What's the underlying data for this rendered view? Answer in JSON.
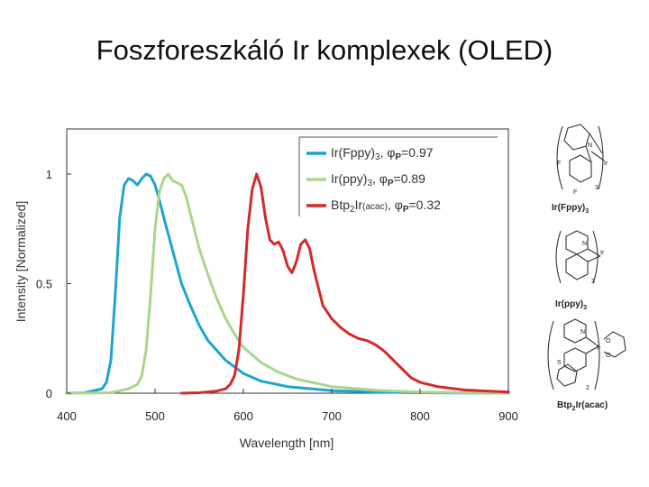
{
  "slide": {
    "title": "Foszforeszkáló Ir komplexek (OLED)"
  },
  "chart_data": {
    "type": "line",
    "title": "",
    "xlabel": "Wavelength [nm]",
    "ylabel": "Intensity [Normalized]",
    "xlim": [
      400,
      900
    ],
    "ylim": [
      0,
      1.2
    ],
    "xticks": [
      400,
      500,
      600,
      700,
      800,
      900
    ],
    "xtick_labels": [
      "400",
      "500",
      "600",
      "700",
      "800",
      "900"
    ],
    "yticks": [
      0,
      0.5,
      1
    ],
    "ytick_labels": [
      "0",
      "0.5",
      "1"
    ],
    "grid": false,
    "legend_position": "top-right",
    "series": [
      {
        "name": "Ir(Fppy)3",
        "legend_main": "Ir(Fppy)",
        "legend_sub": "3",
        "legend_phi_label": "φ",
        "legend_phi_sub": "P",
        "legend_phi_value": "=0.97",
        "color": "#1ea5cf",
        "x": [
          400,
          420,
          440,
          445,
          450,
          455,
          460,
          465,
          470,
          475,
          480,
          485,
          490,
          495,
          500,
          505,
          510,
          520,
          530,
          540,
          550,
          560,
          580,
          600,
          620,
          650,
          700,
          750,
          800,
          900
        ],
        "y": [
          0,
          0.002,
          0.02,
          0.05,
          0.15,
          0.45,
          0.8,
          0.95,
          0.98,
          0.97,
          0.95,
          0.98,
          1.0,
          0.99,
          0.95,
          0.88,
          0.8,
          0.65,
          0.5,
          0.4,
          0.31,
          0.24,
          0.15,
          0.09,
          0.055,
          0.03,
          0.012,
          0.005,
          0.002,
          0
        ]
      },
      {
        "name": "Ir(ppy)3",
        "legend_main": "Ir(ppy)",
        "legend_sub": "3",
        "legend_phi_label": "φ",
        "legend_phi_sub": "P",
        "legend_phi_value": "=0.89",
        "color": "#a8d68a",
        "x": [
          400,
          450,
          470,
          480,
          485,
          490,
          495,
          500,
          505,
          510,
          515,
          520,
          525,
          530,
          535,
          540,
          545,
          550,
          560,
          570,
          580,
          590,
          600,
          620,
          640,
          660,
          700,
          750,
          800,
          850,
          900
        ],
        "y": [
          0,
          0.002,
          0.02,
          0.04,
          0.08,
          0.2,
          0.45,
          0.75,
          0.92,
          0.98,
          1.0,
          0.97,
          0.96,
          0.95,
          0.9,
          0.82,
          0.74,
          0.66,
          0.54,
          0.43,
          0.34,
          0.27,
          0.21,
          0.14,
          0.095,
          0.065,
          0.03,
          0.013,
          0.005,
          0.002,
          0
        ]
      },
      {
        "name": "Btp2Ir(acac)",
        "legend_main": "Btp",
        "legend_sub": "2",
        "legend_main2": "Ir",
        "legend_small": "(acac)",
        "legend_phi_label": "φ",
        "legend_phi_sub": "P",
        "legend_phi_value": "=0.32",
        "color": "#d42a2a",
        "x": [
          530,
          550,
          570,
          580,
          585,
          590,
          595,
          600,
          605,
          610,
          615,
          620,
          625,
          630,
          635,
          640,
          645,
          650,
          655,
          660,
          665,
          670,
          675,
          680,
          690,
          700,
          710,
          720,
          730,
          740,
          750,
          760,
          770,
          780,
          790,
          800,
          820,
          850,
          900
        ],
        "y": [
          0,
          0.002,
          0.01,
          0.02,
          0.04,
          0.08,
          0.2,
          0.45,
          0.75,
          0.93,
          1.0,
          0.94,
          0.8,
          0.7,
          0.68,
          0.69,
          0.65,
          0.58,
          0.55,
          0.6,
          0.68,
          0.7,
          0.66,
          0.56,
          0.4,
          0.34,
          0.3,
          0.27,
          0.25,
          0.24,
          0.22,
          0.19,
          0.15,
          0.11,
          0.07,
          0.05,
          0.03,
          0.015,
          0.005
        ]
      }
    ]
  },
  "structures": [
    {
      "label_main": "Ir(Fppy)",
      "label_sub": "3",
      "atoms": [
        "N",
        "Ir",
        "F",
        "F",
        "3"
      ]
    },
    {
      "label_main": "Ir(ppy)",
      "label_sub": "3",
      "atoms": [
        "N",
        "Ir",
        "3"
      ]
    },
    {
      "label_main": "Btp",
      "label_sub": "2",
      "label_main2": "Ir(acac)",
      "atoms": [
        "N",
        "Ir",
        "S",
        "O",
        "O",
        "2"
      ]
    }
  ]
}
